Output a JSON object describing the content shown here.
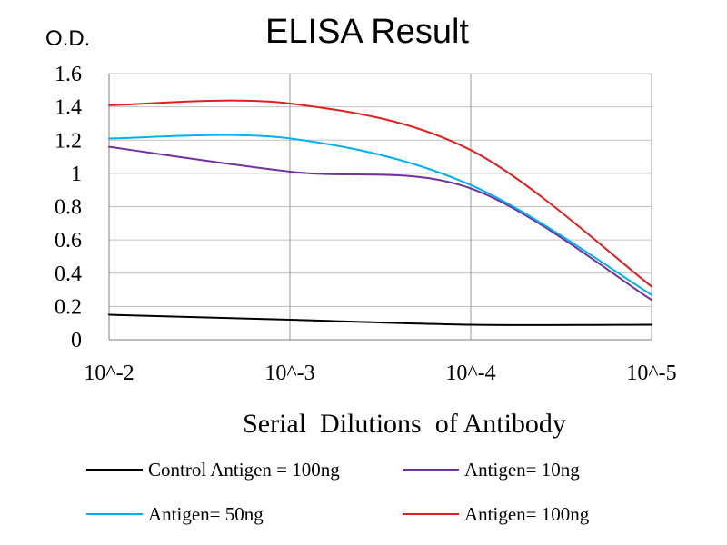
{
  "chart_data": {
    "type": "line",
    "title": "ELISA Result",
    "ylabel": "O.D.",
    "xlabel": "Serial  Dilutions  of Antibody",
    "categories": [
      "10^-2",
      "10^-3",
      "10^-4",
      "10^-5"
    ],
    "y_ticks": [
      "0",
      "0.2",
      "0.4",
      "0.6",
      "0.8",
      "1",
      "1.2",
      "1.4",
      "1.6"
    ],
    "ylim": [
      0,
      1.6
    ],
    "grid": true,
    "legend_position": "bottom",
    "series": [
      {
        "name": "Control Antigen = 100ng",
        "color": "#000000",
        "values": [
          0.15,
          0.12,
          0.09,
          0.09
        ]
      },
      {
        "name": "Antigen= 10ng",
        "color": "#7030a0",
        "values": [
          1.16,
          1.01,
          0.91,
          0.24
        ]
      },
      {
        "name": "Antigen= 50ng",
        "color": "#00b0f0",
        "values": [
          1.21,
          1.21,
          0.93,
          0.27
        ]
      },
      {
        "name": "Antigen= 100ng",
        "color": "#e02020",
        "values": [
          1.41,
          1.42,
          1.14,
          0.32
        ]
      }
    ]
  }
}
